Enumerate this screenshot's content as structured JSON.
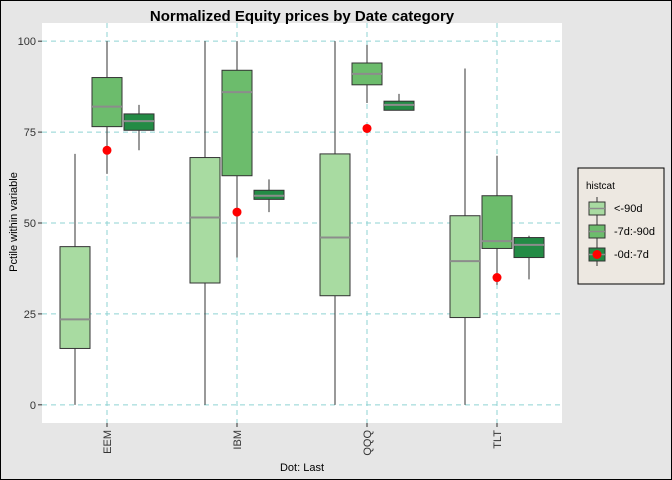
{
  "chart_data": {
    "type": "boxplot",
    "title": "Normalized Equity prices by Date category",
    "xlabel": "Dot: Last",
    "ylabel": "Pctile within variable",
    "ylim": [
      -5,
      105
    ],
    "yticks": [
      0,
      25,
      50,
      75,
      100
    ],
    "categories": [
      "EEM",
      "IBM",
      "QQQ",
      "TLT"
    ],
    "grid": true,
    "legend": {
      "title": "histcat",
      "position": "right",
      "entries": [
        "<-90d",
        "-7d:-90d",
        "-0d:-7d"
      ]
    },
    "series": [
      {
        "name": "<-90d",
        "color": "#a8dba1",
        "boxes": [
          {
            "min": 0,
            "q1": 15.5,
            "median": 23.5,
            "q3": 43.5,
            "max": 69
          },
          {
            "min": 0,
            "q1": 33.5,
            "median": 51.5,
            "q3": 68,
            "max": 100
          },
          {
            "min": 0,
            "q1": 30,
            "median": 46,
            "q3": 69,
            "max": 100
          },
          {
            "min": 0,
            "q1": 24,
            "median": 39.5,
            "q3": 52,
            "max": 92.5
          }
        ]
      },
      {
        "name": "-7d:-90d",
        "color": "#6cbc6c",
        "boxes": [
          {
            "min": 63.5,
            "q1": 76.5,
            "median": 82,
            "q3": 90,
            "max": 100
          },
          {
            "min": 40.5,
            "q1": 63,
            "median": 86,
            "q3": 92,
            "max": 100
          },
          {
            "min": 83,
            "q1": 88,
            "median": 91,
            "q3": 94,
            "max": 99
          },
          {
            "min": 33,
            "q1": 43,
            "median": 45,
            "q3": 57.5,
            "max": 68.5
          }
        ]
      },
      {
        "name": "-0d:-7d",
        "color": "#238b45",
        "boxes": [
          {
            "min": 70,
            "q1": 75.5,
            "median": 78,
            "q3": 80,
            "max": 82.5
          },
          {
            "min": 53,
            "q1": 56.5,
            "median": 57.5,
            "q3": 59,
            "max": 62
          },
          {
            "min": 81,
            "q1": 81,
            "median": 82.5,
            "q3": 83.5,
            "max": 85.5
          },
          {
            "min": 34.5,
            "q1": 40.5,
            "median": 44,
            "q3": 46,
            "max": 46.5
          }
        ]
      }
    ],
    "last_points": [
      {
        "category": "EEM",
        "value": 70
      },
      {
        "category": "IBM",
        "value": 53
      },
      {
        "category": "QQQ",
        "value": 76
      },
      {
        "category": "TLT",
        "value": 35
      }
    ],
    "last_point_color": "#ff0000"
  }
}
